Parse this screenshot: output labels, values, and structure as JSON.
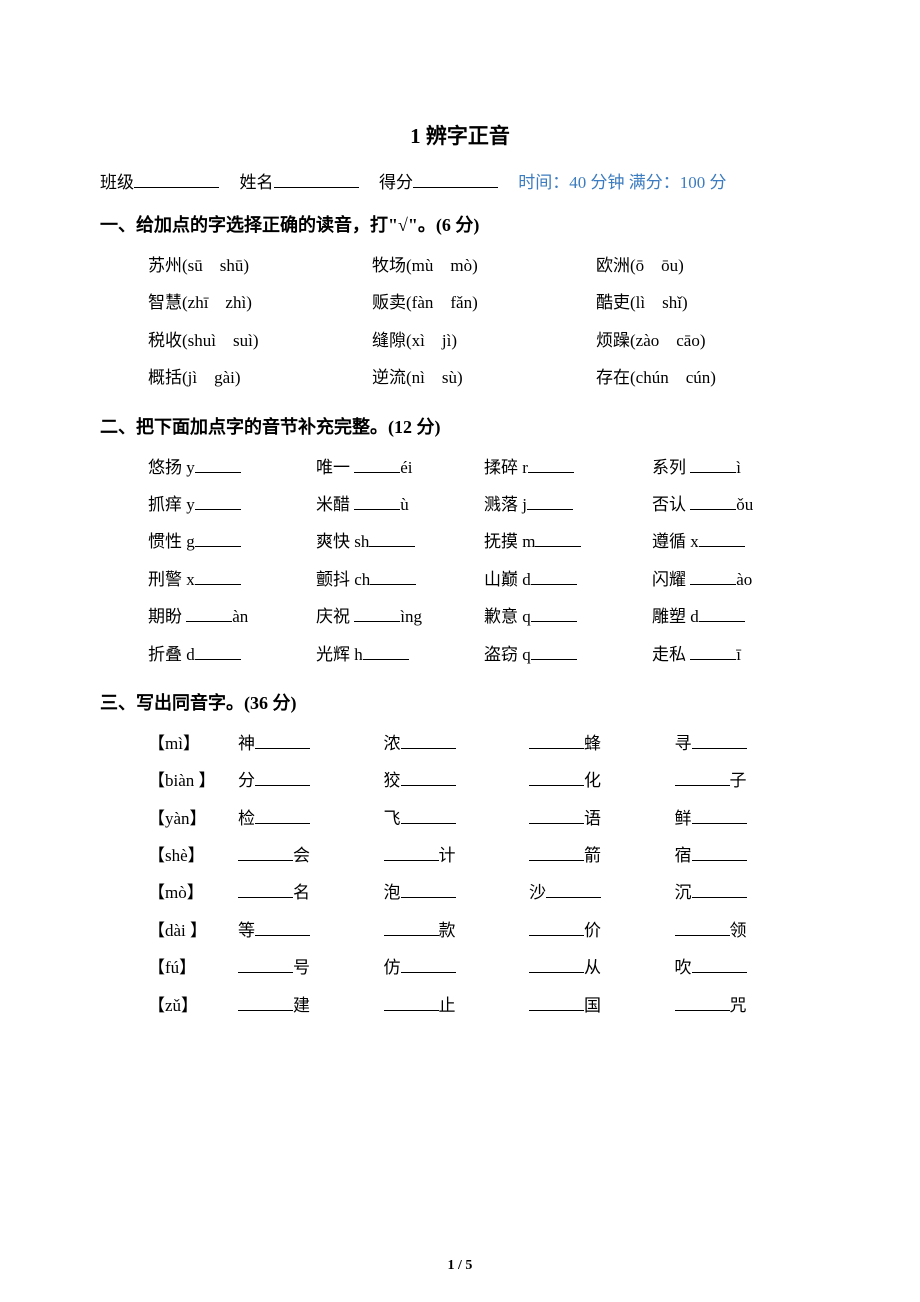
{
  "title": "1 辨字正音",
  "header": {
    "class_label": "班级",
    "name_label": "姓名",
    "score_label": "得分",
    "meta": "时间：40 分钟 满分：100 分",
    "meta_color": "#3b7bbf"
  },
  "sections": {
    "s1": {
      "heading": "一、给加点的字选择正确的读音，打\"√\"。(6 分)",
      "rows": [
        [
          "苏州(sū　shū)",
          "牧场(mù　mò)",
          "欧洲(ō　ōu)"
        ],
        [
          "智慧(zhī　zhì)",
          "贩卖(fàn　fǎn)",
          "酷吏(lì　shǐ)"
        ],
        [
          "税收(shuì　suì)",
          "缝隙(xì　jì)",
          "烦躁(zào　cāo)"
        ],
        [
          "概括(jì　gài)",
          "逆流(nì　sù)",
          "存在(chún　cún)"
        ]
      ]
    },
    "s2": {
      "heading": "二、把下面加点字的音节补充完整。(12 分)",
      "rows": [
        [
          [
            "悠扬 y",
            ""
          ],
          [
            "唯一 ",
            "éi"
          ],
          [
            "揉碎 r",
            ""
          ],
          [
            "系列 ",
            "ì"
          ]
        ],
        [
          [
            "抓痒 y",
            ""
          ],
          [
            "米醋 ",
            "ù"
          ],
          [
            "溅落 j",
            ""
          ],
          [
            "否认 ",
            "ǒu"
          ]
        ],
        [
          [
            "惯性 g",
            ""
          ],
          [
            "爽快 sh",
            ""
          ],
          [
            "抚摸 m",
            ""
          ],
          [
            "遵循 x",
            ""
          ]
        ],
        [
          [
            "刑警 x",
            ""
          ],
          [
            "颤抖 ch",
            ""
          ],
          [
            "山巅 d",
            ""
          ],
          [
            "闪耀 ",
            "ào"
          ]
        ],
        [
          [
            "期盼 ",
            "àn"
          ],
          [
            "庆祝 ",
            "ìng"
          ],
          [
            "歉意 q",
            ""
          ],
          [
            "雕塑 d",
            ""
          ]
        ],
        [
          [
            "折叠 d",
            ""
          ],
          [
            "光辉 h",
            ""
          ],
          [
            "盗窃 q",
            ""
          ],
          [
            "走私 ",
            "ī"
          ]
        ]
      ]
    },
    "s3": {
      "heading": "三、写出同音字。(36 分)",
      "rows": [
        {
          "py": "【mì】",
          "cells": [
            [
              "神",
              "_"
            ],
            [
              "浓",
              "_"
            ],
            [
              "_",
              "蜂"
            ],
            [
              "寻",
              "_"
            ]
          ]
        },
        {
          "py": "【biàn 】",
          "cells": [
            [
              "分",
              "_"
            ],
            [
              "狡",
              "_"
            ],
            [
              "_",
              "化"
            ],
            [
              "_",
              "子"
            ]
          ]
        },
        {
          "py": "【yàn】",
          "cells": [
            [
              "检",
              "_"
            ],
            [
              "飞",
              "_"
            ],
            [
              "_",
              "语"
            ],
            [
              "鲜",
              "_"
            ]
          ]
        },
        {
          "py": "【shè】",
          "cells": [
            [
              "_",
              "会"
            ],
            [
              "_",
              "计"
            ],
            [
              "_",
              "箭"
            ],
            [
              "宿",
              "_"
            ]
          ]
        },
        {
          "py": "【mò】",
          "cells": [
            [
              "_",
              "名"
            ],
            [
              "泡",
              "_"
            ],
            [
              "沙",
              "_"
            ],
            [
              "沉",
              "_"
            ]
          ]
        },
        {
          "py": "【dài 】",
          "cells": [
            [
              "等",
              "_"
            ],
            [
              "_",
              "款"
            ],
            [
              "_",
              "价"
            ],
            [
              "_",
              "领"
            ]
          ]
        },
        {
          "py": "【fú】",
          "cells": [
            [
              "_",
              "号"
            ],
            [
              "仿",
              "_"
            ],
            [
              "_",
              "从"
            ],
            [
              "吹",
              "_"
            ]
          ]
        },
        {
          "py": "【zǔ】",
          "cells": [
            [
              "_",
              "建"
            ],
            [
              "_",
              "止"
            ],
            [
              "_",
              "国"
            ],
            [
              "_",
              "咒"
            ]
          ]
        }
      ]
    }
  },
  "pageno": "1 / 5"
}
